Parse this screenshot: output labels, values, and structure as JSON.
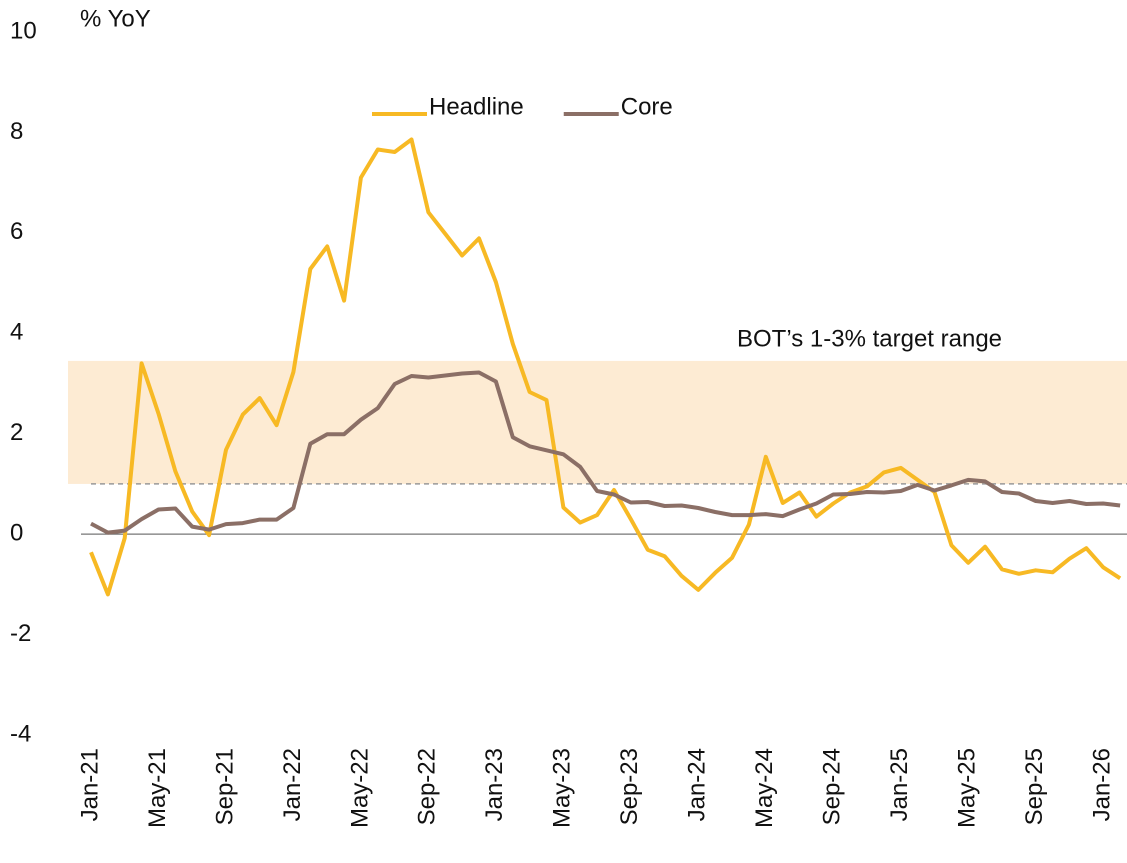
{
  "chart_data": {
    "type": "line",
    "y_label": "% YoY",
    "legend": "top",
    "categories": [
      "Jan-21",
      null,
      null,
      null,
      "May-21",
      null,
      null,
      null,
      "Sep-21",
      null,
      null,
      null,
      "Jan-22",
      null,
      null,
      null,
      "May-22",
      null,
      null,
      null,
      "Sep-22",
      null,
      null,
      null,
      "Jan-23",
      null,
      null,
      null,
      "May-23",
      null,
      null,
      null,
      "Sep-23",
      null,
      null,
      null,
      "Jan-24",
      null,
      null,
      null,
      "May-24",
      null,
      null,
      null,
      "Sep-24",
      null,
      null,
      null,
      "Jan-25",
      null,
      null,
      null,
      "May-25",
      null,
      null,
      null,
      "Sep-25",
      null,
      null,
      null,
      "Jan-26",
      null
    ],
    "series": [
      {
        "name": "Headline",
        "color": "#f7b924",
        "values": [
          -0.36,
          -1.2,
          -0.08,
          3.4,
          2.4,
          1.25,
          0.45,
          -0.02,
          1.68,
          2.38,
          2.71,
          2.17,
          3.23,
          5.28,
          5.73,
          4.65,
          7.1,
          7.66,
          7.61,
          7.86,
          6.41,
          5.98,
          5.55,
          5.89,
          5.02,
          3.79,
          2.83,
          2.67,
          0.53,
          0.23,
          0.38,
          0.88,
          0.3,
          -0.31,
          -0.44,
          -0.83,
          -1.11,
          -0.77,
          -0.47,
          0.19,
          1.54,
          0.62,
          0.83,
          0.35,
          0.61,
          0.83,
          0.95,
          1.23,
          1.32,
          1.08,
          0.84,
          -0.22,
          -0.57,
          -0.25,
          -0.7,
          -0.79,
          -0.72,
          -0.76,
          -0.49,
          -0.28,
          -0.66,
          -0.88
        ]
      },
      {
        "name": "Core",
        "color": "#8b6f66",
        "values": [
          0.21,
          0.03,
          0.07,
          0.3,
          0.49,
          0.51,
          0.15,
          0.09,
          0.2,
          0.22,
          0.29,
          0.29,
          0.52,
          1.8,
          1.99,
          1.99,
          2.28,
          2.51,
          2.99,
          3.15,
          3.12,
          3.16,
          3.2,
          3.22,
          3.04,
          1.93,
          1.75,
          1.67,
          1.59,
          1.34,
          0.86,
          0.79,
          0.63,
          0.64,
          0.56,
          0.57,
          0.52,
          0.44,
          0.38,
          0.38,
          0.4,
          0.36,
          0.49,
          0.61,
          0.79,
          0.8,
          0.84,
          0.83,
          0.86,
          0.98,
          0.87,
          0.97,
          1.08,
          1.05,
          0.84,
          0.81,
          0.66,
          0.62,
          0.66,
          0.6,
          0.61,
          0.57
        ]
      }
    ],
    "ylim": [
      -4,
      10
    ],
    "yticks": [
      -4,
      -2,
      0,
      2,
      4,
      6,
      8,
      10
    ],
    "target_range": {
      "label": "BOT’s 1-3% target range",
      "range": [
        1,
        3.45
      ],
      "color": "#fdebd3"
    },
    "reference_line": 1
  }
}
